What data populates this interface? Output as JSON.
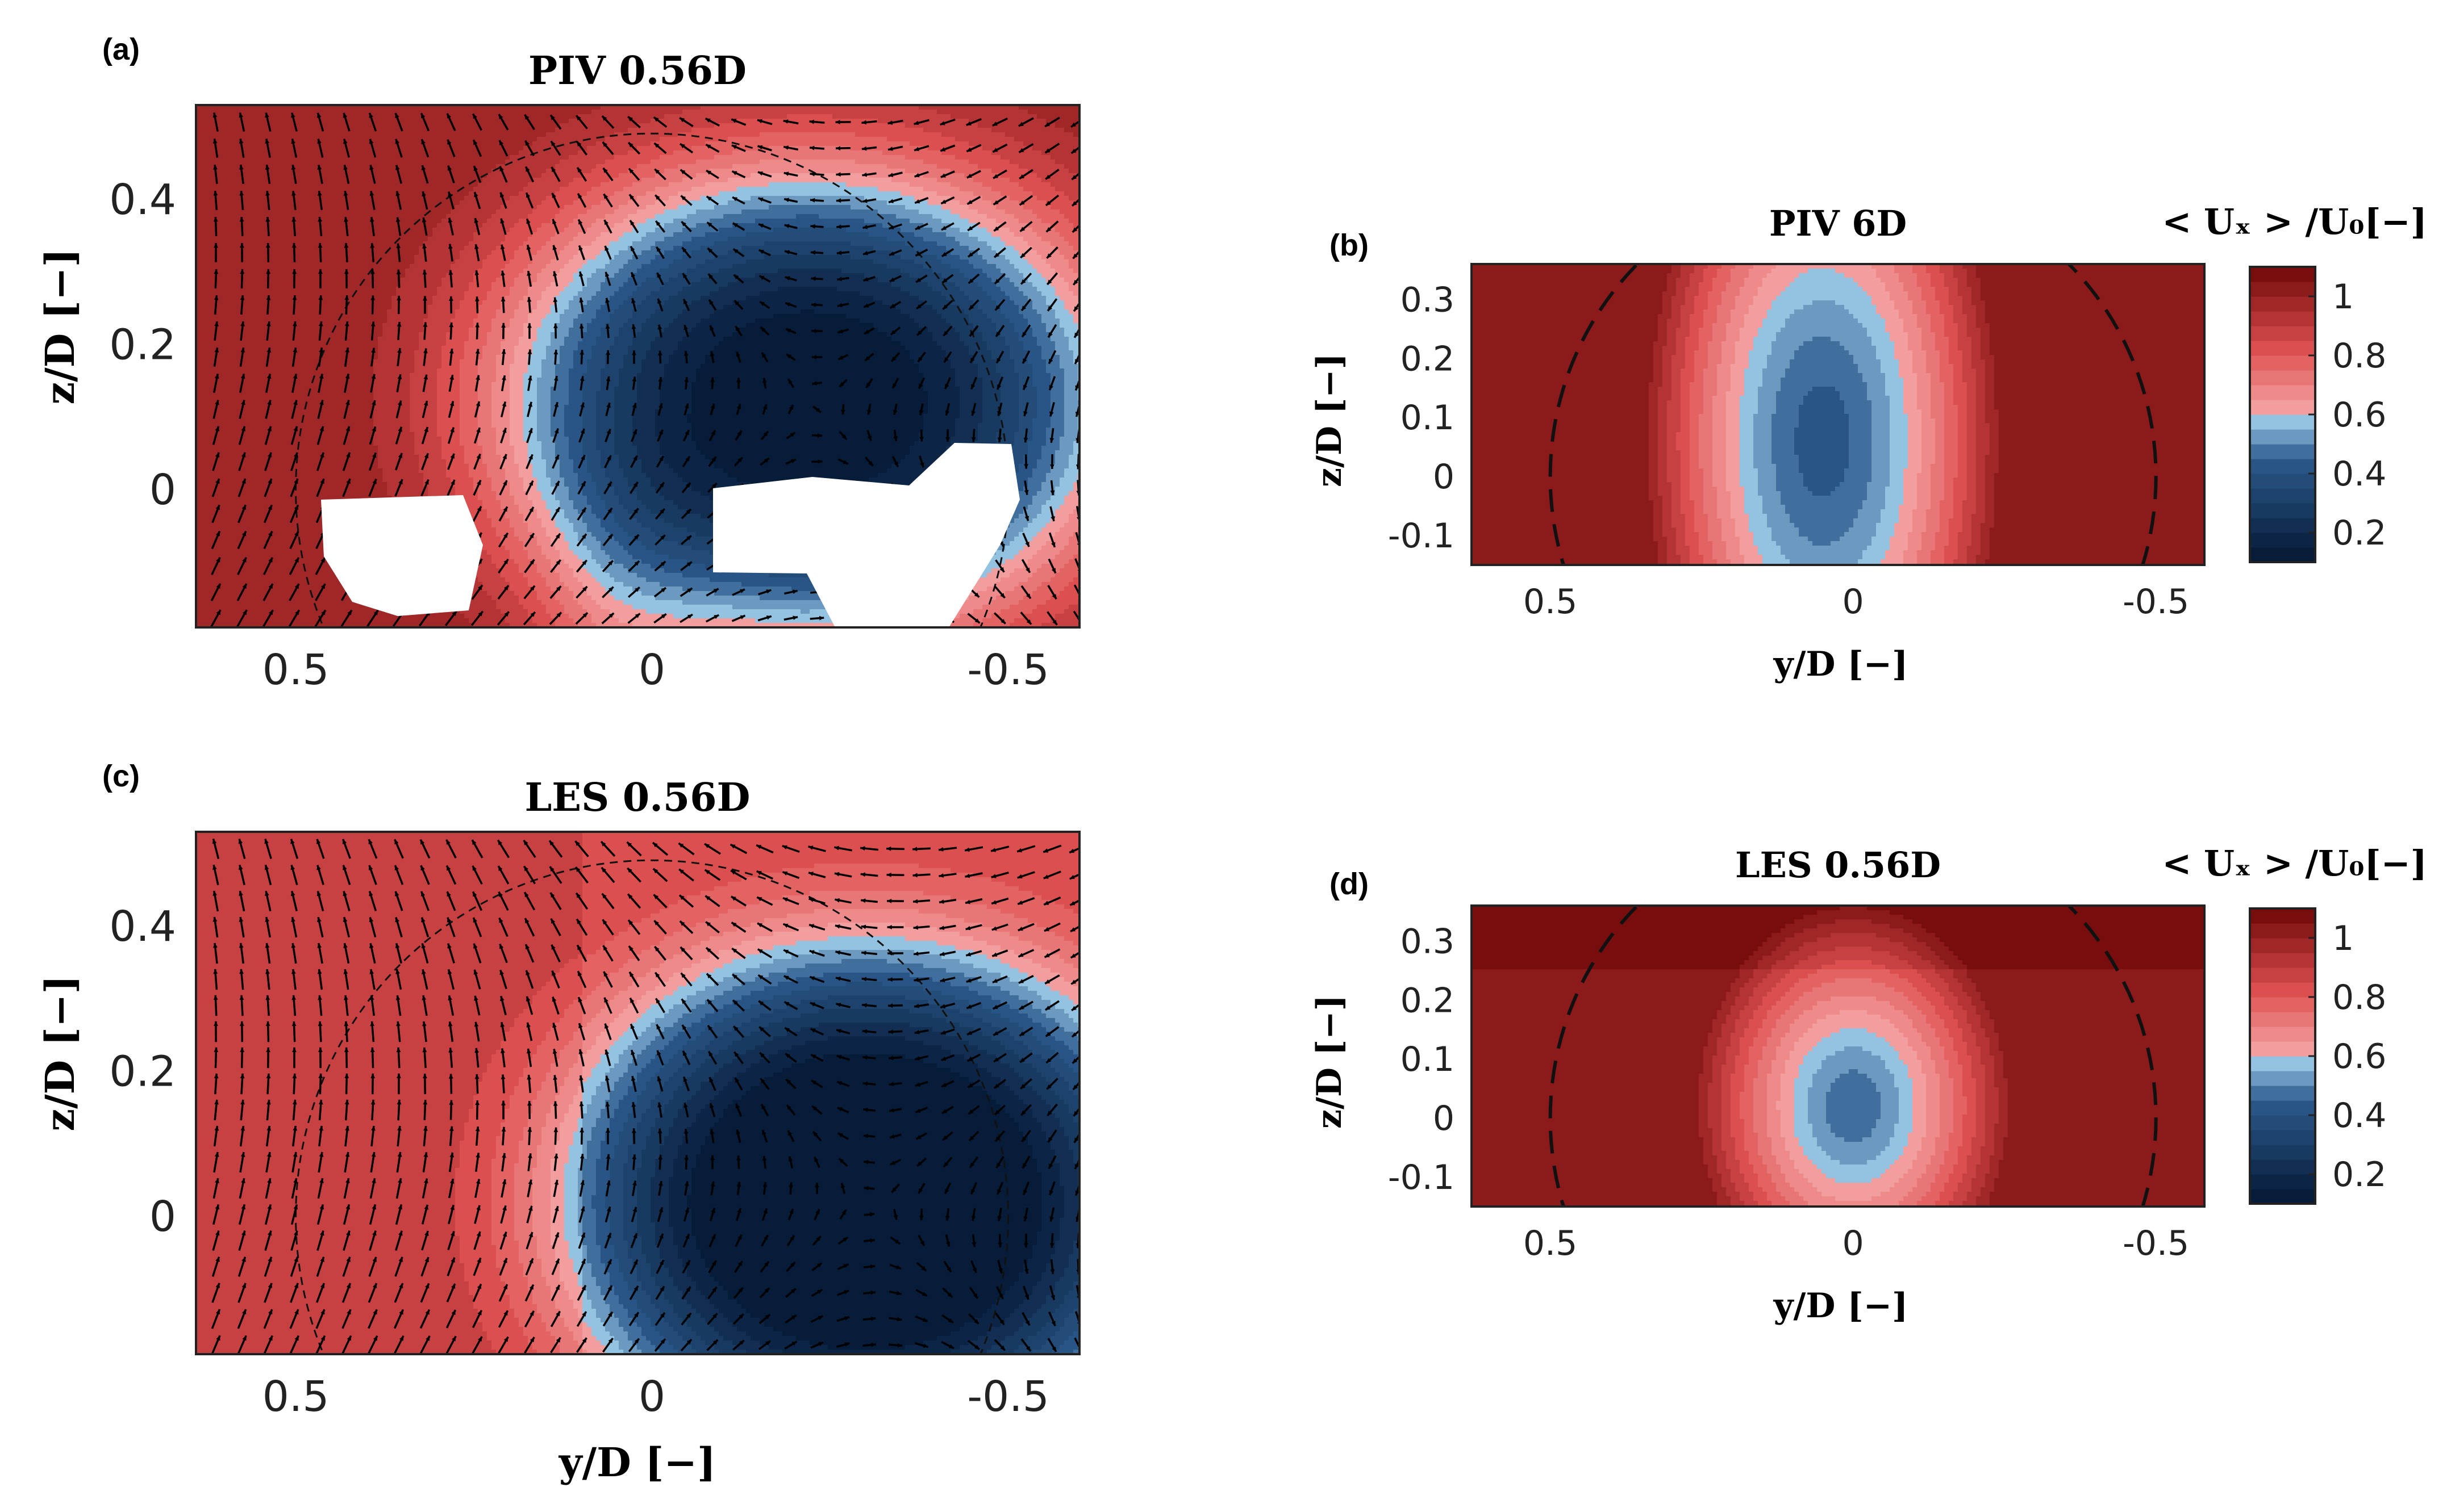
{
  "colors": {
    "low": "#031733",
    "mid_blue": "#2c5a8c",
    "light_blue": "#a9d8f2",
    "light_red": "#f6a8a8",
    "mid_red": "#de5050",
    "high": "#6e0608"
  },
  "chart_data": [
    {
      "type": "heatmap",
      "panel_label": "(a)",
      "title": "PIV   0.56D",
      "xlabel": "",
      "ylabel": "z/D  [−]",
      "xlim": [
        0.64,
        -0.6
      ],
      "ylim": [
        -0.19,
        0.53
      ],
      "x_ticks": [
        0.5,
        0,
        -0.5
      ],
      "x_tick_labels": [
        "0.5",
        "0",
        "-0.5"
      ],
      "y_ticks": [
        0,
        0.2,
        0.4
      ],
      "y_tick_labels": [
        "0",
        "0.2",
        "0.4"
      ],
      "field": "mean streamwise velocity with in-plane velocity vectors",
      "wake_core": {
        "y": -0.22,
        "z": 0.12,
        "value": 0.05
      },
      "masked_regions": 2,
      "rotor_circle_radius": 0.5,
      "vectors": true
    },
    {
      "type": "heatmap",
      "panel_label": "(b)",
      "title": "PIV    6D",
      "xlabel": "y/D  [−]",
      "ylabel": "z/D  [−]",
      "xlim": [
        0.63,
        -0.58
      ],
      "ylim": [
        -0.15,
        0.36
      ],
      "x_ticks": [
        0.5,
        0,
        -0.5
      ],
      "x_tick_labels": [
        "0.5",
        "0",
        "-0.5"
      ],
      "y_ticks": [
        -0.1,
        0,
        0.1,
        0.2,
        0.3
      ],
      "y_tick_labels": [
        "-0.1",
        "0",
        "0.1",
        "0.2",
        "0.3"
      ],
      "wake_core": {
        "y": 0.08,
        "z": 0.06,
        "value": 0.45
      },
      "rotor_circle_radius": 0.5,
      "vectors": false
    },
    {
      "type": "heatmap",
      "panel_label": "(c)",
      "title": "LES   0.56D",
      "xlabel": "y/D  [−]",
      "ylabel": "z/D  [−]",
      "xlim": [
        0.64,
        -0.6
      ],
      "ylim": [
        -0.19,
        0.53
      ],
      "x_ticks": [
        0.5,
        0,
        -0.5
      ],
      "x_tick_labels": [
        "0.5",
        "0",
        "-0.5"
      ],
      "y_ticks": [
        0,
        0.2,
        0.4
      ],
      "y_tick_labels": [
        "0",
        "0.2",
        "0.4"
      ],
      "wake_core": {
        "y": -0.3,
        "z": 0.02,
        "value": 0.02
      },
      "rotor_circle_radius": 0.5,
      "vectors": true
    },
    {
      "type": "heatmap",
      "panel_label": "(d)",
      "title": "LES   0.56D",
      "xlabel": "y/D  [−]",
      "ylabel": "z/D  [−]",
      "xlim": [
        0.63,
        -0.58
      ],
      "ylim": [
        -0.15,
        0.36
      ],
      "x_ticks": [
        0.5,
        0,
        -0.5
      ],
      "x_tick_labels": [
        "0.5",
        "0",
        "-0.5"
      ],
      "y_ticks": [
        -0.1,
        0,
        0.1,
        0.2,
        0.3
      ],
      "y_tick_labels": [
        "-0.1",
        "0",
        "0.1",
        "0.2",
        "0.3"
      ],
      "wake_core": {
        "y": 0.02,
        "z": 0.05,
        "value": 0.45
      },
      "rotor_circle_radius": 0.5,
      "vectors": false
    }
  ],
  "colorbar": {
    "label": "< Uₓ > /U₀[−]",
    "range": [
      0.1,
      1.1
    ],
    "levels": 20,
    "ticks": [
      0.2,
      0.4,
      0.6,
      0.8,
      1
    ],
    "tick_labels": [
      "0.2",
      "0.4",
      "0.6",
      "0.8",
      "1"
    ]
  }
}
